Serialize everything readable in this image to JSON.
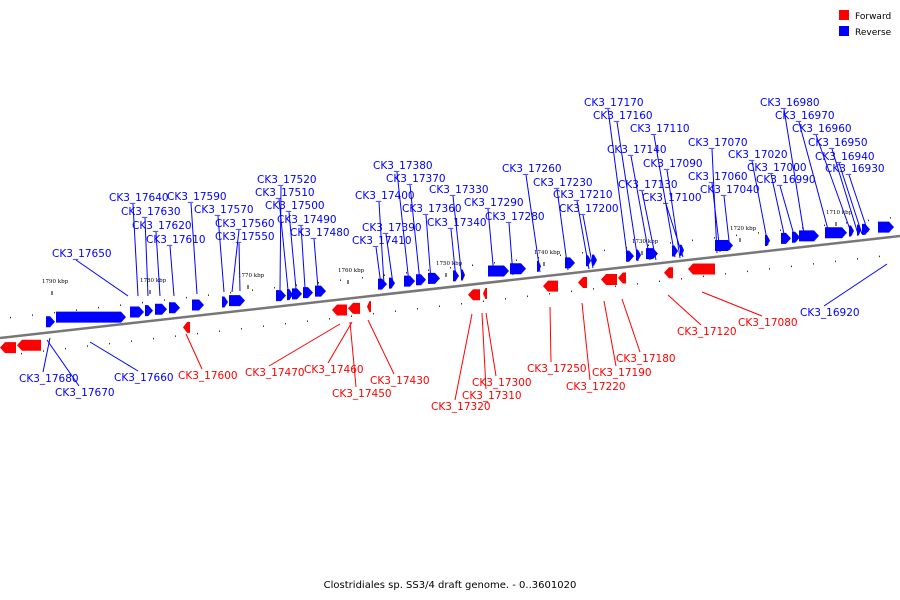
{
  "legend": [
    {
      "label": "Forward",
      "color": "#ff0000"
    },
    {
      "label": "Reverse",
      "color": "#0000ff"
    }
  ],
  "caption": "Clostridiales sp. SS3/4 draft genome. - 0..3601020",
  "colors": {
    "forward": "#ff0000",
    "reverse": "#0000ff",
    "axis": "#777777"
  },
  "ticks": [
    "1790 kbp",
    "1780 kbp",
    "1770 kbp",
    "1760 kbp",
    "1750 kbp",
    "1740 kbp",
    "1730 kbp",
    "1720 kbp",
    "1710 kbp"
  ],
  "reverse_labels": [
    "CK3_17650",
    "CK3_17640",
    "CK3_17630",
    "CK3_17620",
    "CK3_17610",
    "CK3_17590",
    "CK3_17570",
    "CK3_17560",
    "CK3_17550",
    "CK3_17520",
    "CK3_17510",
    "CK3_17500",
    "CK3_17490",
    "CK3_17480",
    "CK3_17410",
    "CK3_17400",
    "CK3_17390",
    "CK3_17380",
    "CK3_17370",
    "CK3_17360",
    "CK3_17340",
    "CK3_17330",
    "CK3_17290",
    "CK3_17280",
    "CK3_17260",
    "CK3_17230",
    "CK3_17210",
    "CK3_17200",
    "CK3_17170",
    "CK3_17160",
    "CK3_17140",
    "CK3_17130",
    "CK3_17110",
    "CK3_17100",
    "CK3_17090",
    "CK3_17070",
    "CK3_17060",
    "CK3_17040",
    "CK3_17020",
    "CK3_17000",
    "CK3_16990",
    "CK3_16980",
    "CK3_16970",
    "CK3_16960",
    "CK3_16950",
    "CK3_16940",
    "CK3_16930",
    "CK3_16920",
    "CK3_17680",
    "CK3_17670",
    "CK3_17660"
  ],
  "forward_labels": [
    "CK3_17600",
    "CK3_17470",
    "CK3_17460",
    "CK3_17450",
    "CK3_17430",
    "CK3_17320",
    "CK3_17310",
    "CK3_17300",
    "CK3_17250",
    "CK3_17220",
    "CK3_17190",
    "CK3_17180",
    "CK3_17120",
    "CK3_17080"
  ]
}
